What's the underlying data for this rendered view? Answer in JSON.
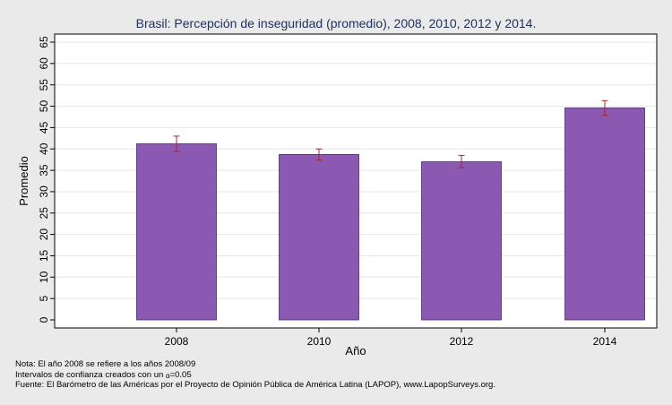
{
  "chart_data": {
    "type": "bar",
    "title": "Brasil: Percepción de inseguridad (promedio), 2008, 2010, 2012 y 2014.",
    "xlabel": "Año",
    "ylabel": "Promedio",
    "categories": [
      "2008",
      "2010",
      "2012",
      "2014"
    ],
    "values": [
      41.2,
      38.7,
      37.0,
      49.6
    ],
    "ci_low": [
      39.4,
      37.4,
      35.6,
      47.9
    ],
    "ci_high": [
      43.0,
      40.0,
      38.5,
      51.3
    ],
    "ylim": [
      0,
      65
    ],
    "yticks": [
      0,
      5,
      10,
      15,
      20,
      25,
      30,
      35,
      40,
      45,
      50,
      55,
      60,
      65
    ],
    "grid": true,
    "bar_color": "#8b59b2",
    "errorbar_color": "#a0282e"
  },
  "notes": {
    "line1": "Nota: El año 2008 se refiere a los años 2008/09",
    "line2_prefix": "Intervalos de confianza creados con un ",
    "alpha_symbol": "α",
    "line2_suffix": "=0.05",
    "line3": "Fuente: El Barómetro de las Américas por el Proyecto de Opinión Pública de América Latina (LAPOP), www.LapopSurveys.org."
  }
}
